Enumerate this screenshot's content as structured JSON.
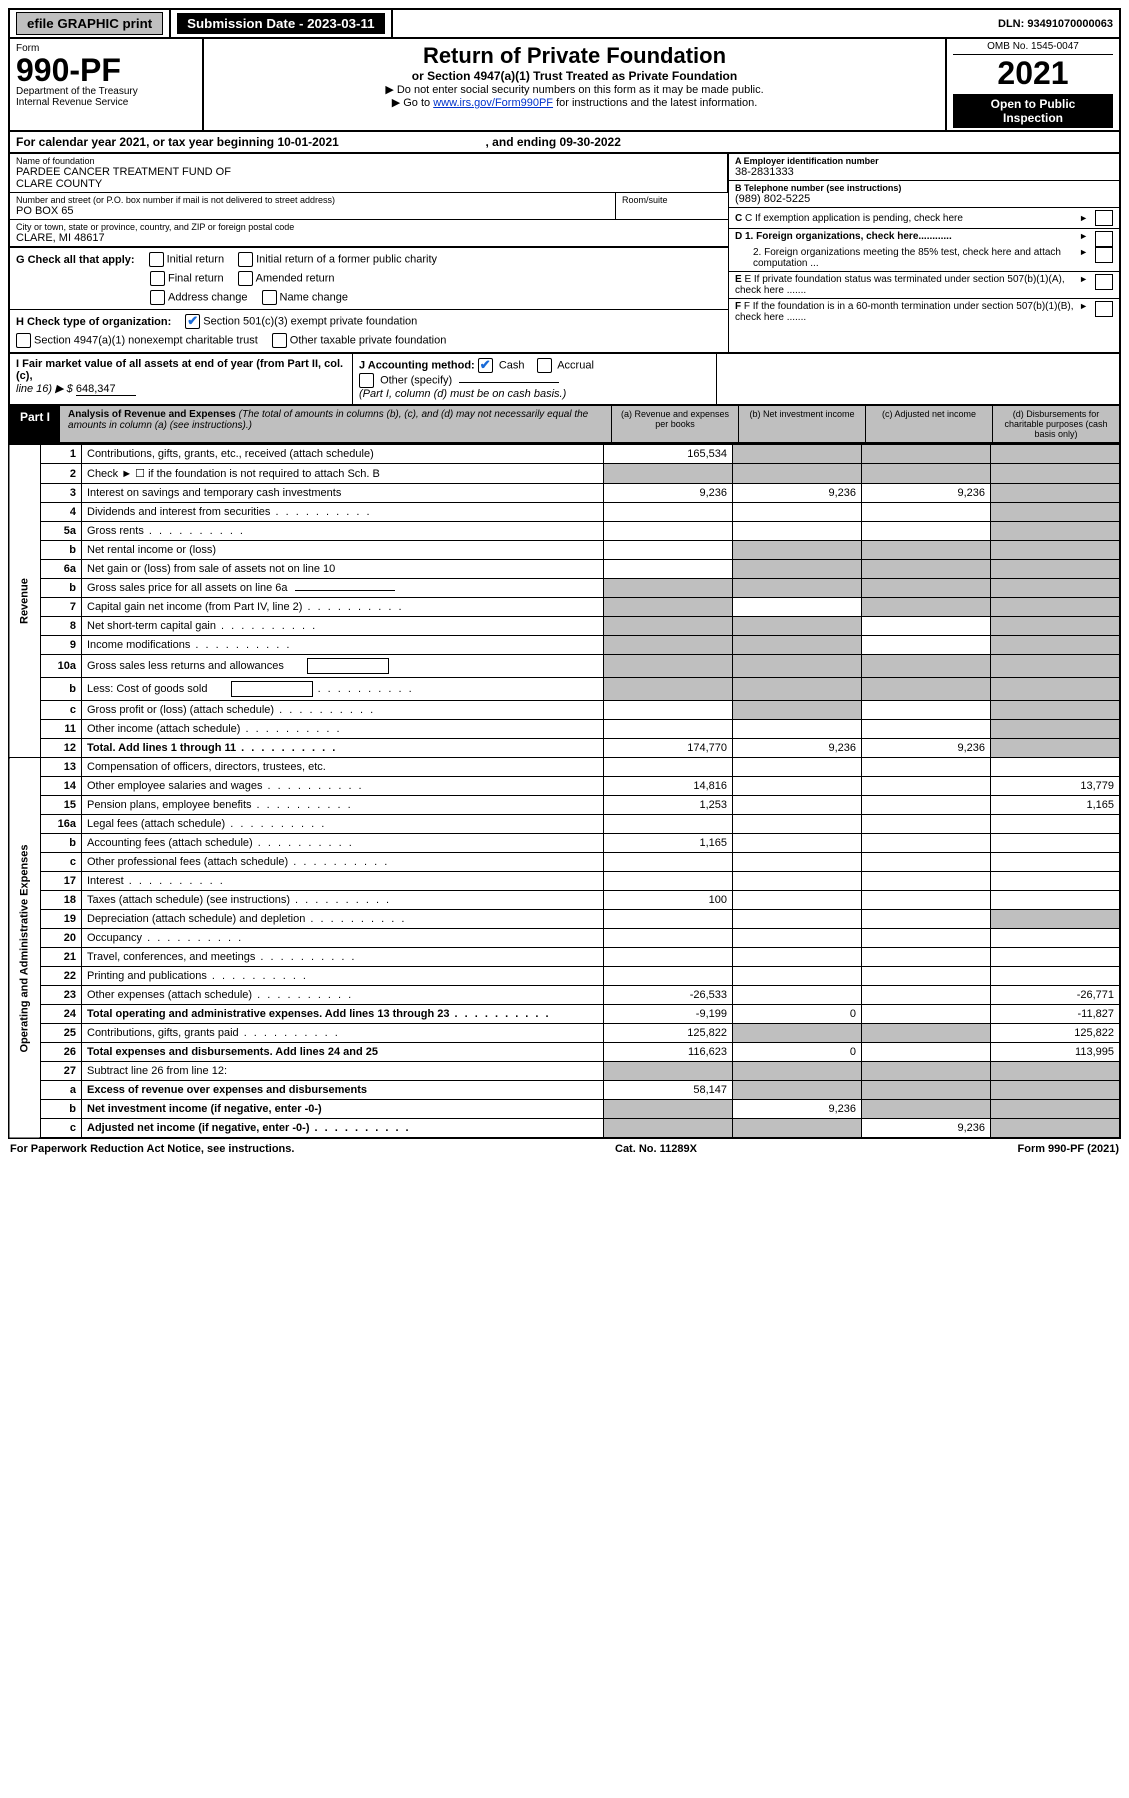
{
  "topbar": {
    "efile": "efile GRAPHIC print",
    "sub_label": "Submission Date - 2023-03-11",
    "dln": "DLN: 93491070000063"
  },
  "header": {
    "form_label": "Form",
    "form_num": "990-PF",
    "dept1": "Department of the Treasury",
    "dept2": "Internal Revenue Service",
    "title": "Return of Private Foundation",
    "sub": "or Section 4947(a)(1) Trust Treated as Private Foundation",
    "instr1": "▶ Do not enter social security numbers on this form as it may be made public.",
    "instr2_pre": "▶ Go to ",
    "instr2_link": "www.irs.gov/Form990PF",
    "instr2_post": " for instructions and the latest information.",
    "omb": "OMB No. 1545-0047",
    "year": "2021",
    "open1": "Open to Public",
    "open2": "Inspection"
  },
  "cal": {
    "text_a": "For calendar year 2021, or tax year beginning 10-01-2021",
    "text_b": ", and ending 09-30-2022"
  },
  "info": {
    "name_lbl": "Name of foundation",
    "name1": "PARDEE CANCER TREATMENT FUND OF",
    "name2": "CLARE COUNTY",
    "addr_lbl": "Number and street (or P.O. box number if mail is not delivered to street address)",
    "addr": "PO BOX 65",
    "room_lbl": "Room/suite",
    "city_lbl": "City or town, state or province, country, and ZIP or foreign postal code",
    "city": "CLARE, MI  48617",
    "ein_lbl": "A Employer identification number",
    "ein": "38-2831333",
    "tel_lbl": "B Telephone number (see instructions)",
    "tel": "(989) 802-5225",
    "c_lbl": "C If exemption application is pending, check here",
    "d1": "D 1. Foreign organizations, check here............",
    "d2": "2. Foreign organizations meeting the 85% test, check here and attach computation ...",
    "e_lbl": "E  If private foundation status was terminated under section 507(b)(1)(A), check here .......",
    "f_lbl": "F  If the foundation is in a 60-month termination under section 507(b)(1)(B), check here .......",
    "g_lbl": "G Check all that apply:",
    "g_opts": [
      "Initial return",
      "Initial return of a former public charity",
      "Final return",
      "Amended return",
      "Address change",
      "Name change"
    ],
    "h_lbl": "H Check type of organization:",
    "h_opt1": "Section 501(c)(3) exempt private foundation",
    "h_opt2": "Section 4947(a)(1) nonexempt charitable trust",
    "h_opt3": "Other taxable private foundation",
    "i_lbl": "I Fair market value of all assets at end of year (from Part II, col. (c),",
    "i_line": "line 16) ▶ $",
    "i_val": "648,347",
    "j_lbl": "J Accounting method:",
    "j_cash": "Cash",
    "j_accrual": "Accrual",
    "j_other": "Other (specify)",
    "j_note": "(Part I, column (d) must be on cash basis.)"
  },
  "part1": {
    "tab": "Part I",
    "title": "Analysis of Revenue and Expenses",
    "note": " (The total of amounts in columns (b), (c), and (d) may not necessarily equal the amounts in column (a) (see instructions).)",
    "col_a": "(a)   Revenue and expenses per books",
    "col_b": "(b)   Net investment income",
    "col_c": "(c)   Adjusted net income",
    "col_d": "(d)   Disbursements for charitable purposes (cash basis only)"
  },
  "side_labels": {
    "rev": "Revenue",
    "op": "Operating and Administrative Expenses"
  },
  "rows": [
    {
      "n": "1",
      "label": "Contributions, gifts, grants, etc., received (attach schedule)",
      "a": "165,534",
      "b": "",
      "c": "",
      "d": "",
      "shade_b": true,
      "shade_c": true,
      "shade_d": true
    },
    {
      "n": "2",
      "label": "Check ► ☐ if the foundation is not required to attach Sch. B",
      "a": "",
      "b": "",
      "c": "",
      "d": "",
      "shade_a": true,
      "shade_b": true,
      "shade_c": true,
      "shade_d": true,
      "dots_mid": true
    },
    {
      "n": "3",
      "label": "Interest on savings and temporary cash investments",
      "a": "9,236",
      "b": "9,236",
      "c": "9,236",
      "d": "",
      "shade_d": true
    },
    {
      "n": "4",
      "label": "Dividends and interest from securities",
      "a": "",
      "b": "",
      "c": "",
      "d": "",
      "shade_d": true,
      "dots": true
    },
    {
      "n": "5a",
      "label": "Gross rents",
      "a": "",
      "b": "",
      "c": "",
      "d": "",
      "shade_d": true,
      "dots": true
    },
    {
      "n": "b",
      "label": "Net rental income or (loss)",
      "a": "",
      "b": "",
      "c": "",
      "d": "",
      "shade_a_half": true,
      "shade_b": true,
      "shade_c": true,
      "shade_d": true
    },
    {
      "n": "6a",
      "label": "Net gain or (loss) from sale of assets not on line 10",
      "a": "",
      "b": "",
      "c": "",
      "d": "",
      "shade_b": true,
      "shade_c": true,
      "shade_d": true
    },
    {
      "n": "b",
      "label": "Gross sales price for all assets on line 6a",
      "a": "",
      "b": "",
      "c": "",
      "d": "",
      "underline_after": true,
      "shade_a": true,
      "shade_b": true,
      "shade_c": true,
      "shade_d": true
    },
    {
      "n": "7",
      "label": "Capital gain net income (from Part IV, line 2)",
      "a": "",
      "b": "",
      "c": "",
      "d": "",
      "shade_a": true,
      "shade_c": true,
      "shade_d": true,
      "dots": true
    },
    {
      "n": "8",
      "label": "Net short-term capital gain",
      "a": "",
      "b": "",
      "c": "",
      "d": "",
      "shade_a": true,
      "shade_b": true,
      "shade_d": true,
      "dots": true
    },
    {
      "n": "9",
      "label": "Income modifications",
      "a": "",
      "b": "",
      "c": "",
      "d": "",
      "shade_a": true,
      "shade_b": true,
      "shade_d": true,
      "dots": true
    },
    {
      "n": "10a",
      "label": "Gross sales less returns and allowances",
      "a": "",
      "b": "",
      "c": "",
      "d": "",
      "box_after": true,
      "shade_a": true,
      "shade_b": true,
      "shade_c": true,
      "shade_d": true
    },
    {
      "n": "b",
      "label": "Less: Cost of goods sold",
      "a": "",
      "b": "",
      "c": "",
      "d": "",
      "box_after": true,
      "shade_a": true,
      "shade_b": true,
      "shade_c": true,
      "shade_d": true,
      "dots": true
    },
    {
      "n": "c",
      "label": "Gross profit or (loss) (attach schedule)",
      "a": "",
      "b": "",
      "c": "",
      "d": "",
      "shade_b": true,
      "shade_d": true,
      "dots": true
    },
    {
      "n": "11",
      "label": "Other income (attach schedule)",
      "a": "",
      "b": "",
      "c": "",
      "d": "",
      "shade_d": true,
      "dots": true
    },
    {
      "n": "12",
      "label": "Total. Add lines 1 through 11",
      "bold": true,
      "a": "174,770",
      "b": "9,236",
      "c": "9,236",
      "d": "",
      "shade_d": true,
      "dots": true
    },
    {
      "n": "13",
      "label": "Compensation of officers, directors, trustees, etc.",
      "a": "",
      "b": "",
      "c": "",
      "d": ""
    },
    {
      "n": "14",
      "label": "Other employee salaries and wages",
      "a": "14,816",
      "b": "",
      "c": "",
      "d": "13,779",
      "dots": true
    },
    {
      "n": "15",
      "label": "Pension plans, employee benefits",
      "a": "1,253",
      "b": "",
      "c": "",
      "d": "1,165",
      "dots": true
    },
    {
      "n": "16a",
      "label": "Legal fees (attach schedule)",
      "a": "",
      "b": "",
      "c": "",
      "d": "",
      "dots": true
    },
    {
      "n": "b",
      "label": "Accounting fees (attach schedule)",
      "a": "1,165",
      "b": "",
      "c": "",
      "d": "",
      "dots": true
    },
    {
      "n": "c",
      "label": "Other professional fees (attach schedule)",
      "a": "",
      "b": "",
      "c": "",
      "d": "",
      "dots": true
    },
    {
      "n": "17",
      "label": "Interest",
      "a": "",
      "b": "",
      "c": "",
      "d": "",
      "dots": true
    },
    {
      "n": "18",
      "label": "Taxes (attach schedule) (see instructions)",
      "a": "100",
      "b": "",
      "c": "",
      "d": "",
      "dots": true
    },
    {
      "n": "19",
      "label": "Depreciation (attach schedule) and depletion",
      "a": "",
      "b": "",
      "c": "",
      "d": "",
      "shade_d": true,
      "dots": true
    },
    {
      "n": "20",
      "label": "Occupancy",
      "a": "",
      "b": "",
      "c": "",
      "d": "",
      "dots": true
    },
    {
      "n": "21",
      "label": "Travel, conferences, and meetings",
      "a": "",
      "b": "",
      "c": "",
      "d": "",
      "dots": true
    },
    {
      "n": "22",
      "label": "Printing and publications",
      "a": "",
      "b": "",
      "c": "",
      "d": "",
      "dots": true
    },
    {
      "n": "23",
      "label": "Other expenses (attach schedule)",
      "a": "-26,533",
      "b": "",
      "c": "",
      "d": "-26,771",
      "dots": true
    },
    {
      "n": "24",
      "label": "Total operating and administrative expenses. Add lines 13 through 23",
      "bold": true,
      "a": "-9,199",
      "b": "0",
      "c": "",
      "d": "-11,827",
      "dots": true
    },
    {
      "n": "25",
      "label": "Contributions, gifts, grants paid",
      "a": "125,822",
      "b": "",
      "c": "",
      "d": "125,822",
      "shade_b": true,
      "shade_c": true,
      "dots": true
    },
    {
      "n": "26",
      "label": "Total expenses and disbursements. Add lines 24 and 25",
      "bold": true,
      "a": "116,623",
      "b": "0",
      "c": "",
      "d": "113,995"
    },
    {
      "n": "27",
      "label": "Subtract line 26 from line 12:",
      "a": "",
      "b": "",
      "c": "",
      "d": "",
      "shade_a": true,
      "shade_b": true,
      "shade_c": true,
      "shade_d": true
    },
    {
      "n": "a",
      "label": "Excess of revenue over expenses and disbursements",
      "bold": true,
      "a": "58,147",
      "b": "",
      "c": "",
      "d": "",
      "shade_b": true,
      "shade_c": true,
      "shade_d": true
    },
    {
      "n": "b",
      "label": "Net investment income (if negative, enter -0-)",
      "bold": true,
      "a": "",
      "b": "9,236",
      "c": "",
      "d": "",
      "shade_a": true,
      "shade_c": true,
      "shade_d": true
    },
    {
      "n": "c",
      "label": "Adjusted net income (if negative, enter -0-)",
      "bold": true,
      "a": "",
      "b": "",
      "c": "9,236",
      "d": "",
      "shade_a": true,
      "shade_b": true,
      "shade_d": true,
      "dots": true
    }
  ],
  "footer": {
    "left": "For Paperwork Reduction Act Notice, see instructions.",
    "mid": "Cat. No. 11289X",
    "right": "Form 990-PF (2021)"
  }
}
